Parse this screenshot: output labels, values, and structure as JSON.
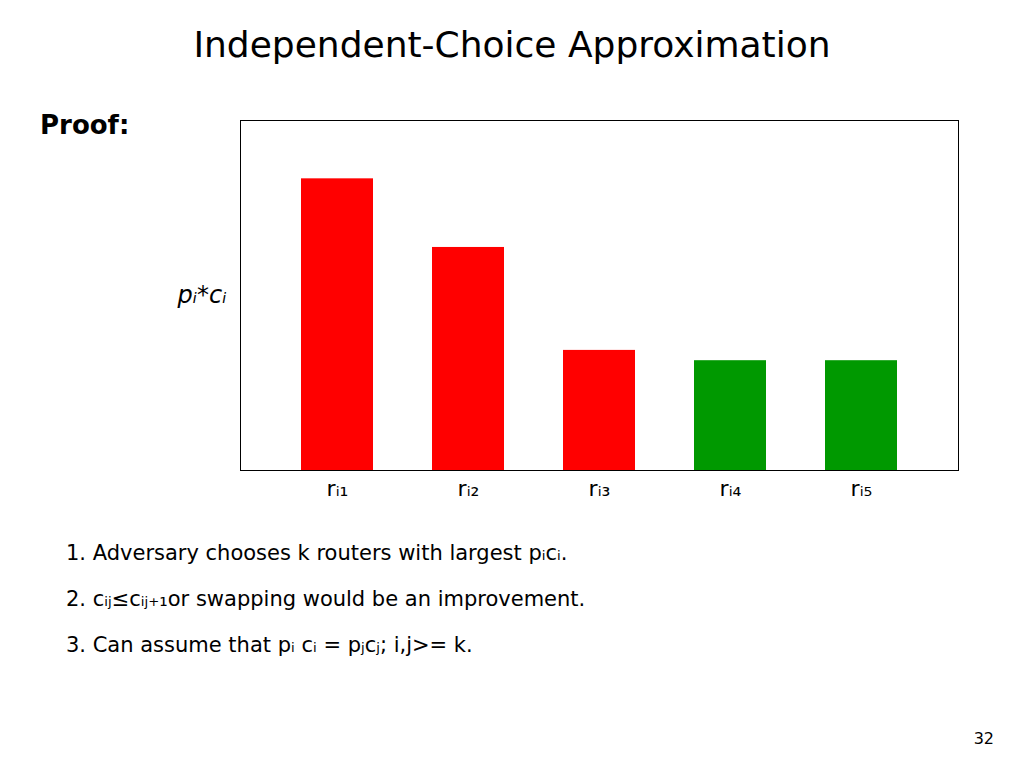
{
  "chart_data": {
    "type": "bar",
    "title": "Independent-Choice Approximation",
    "categories": [
      "rᵢ₁",
      "rᵢ₂",
      "rᵢ₃",
      "rᵢ₄",
      "rᵢ₅"
    ],
    "values": [
      0.85,
      0.65,
      0.35,
      0.32,
      0.32
    ],
    "colors": [
      "#FF0000",
      "#FF0000",
      "#FF0000",
      "#009900",
      "#009900"
    ],
    "ylabel": "pᵢ*cᵢ",
    "ylim": [
      0,
      1.02
    ],
    "yticks": [],
    "grid": false,
    "tick_labels": "x",
    "annotations": [
      "Proof:",
      "1. Adversary chooses k routers with largest pᵢcᵢ.",
      "2. cᵢⱼ≤cᵢⱼ₊₁or swapping would be an improvement.",
      "3. Can assume that pᵢ cᵢ = pⱼcⱼ; i,j>= k.",
      "32"
    ]
  }
}
